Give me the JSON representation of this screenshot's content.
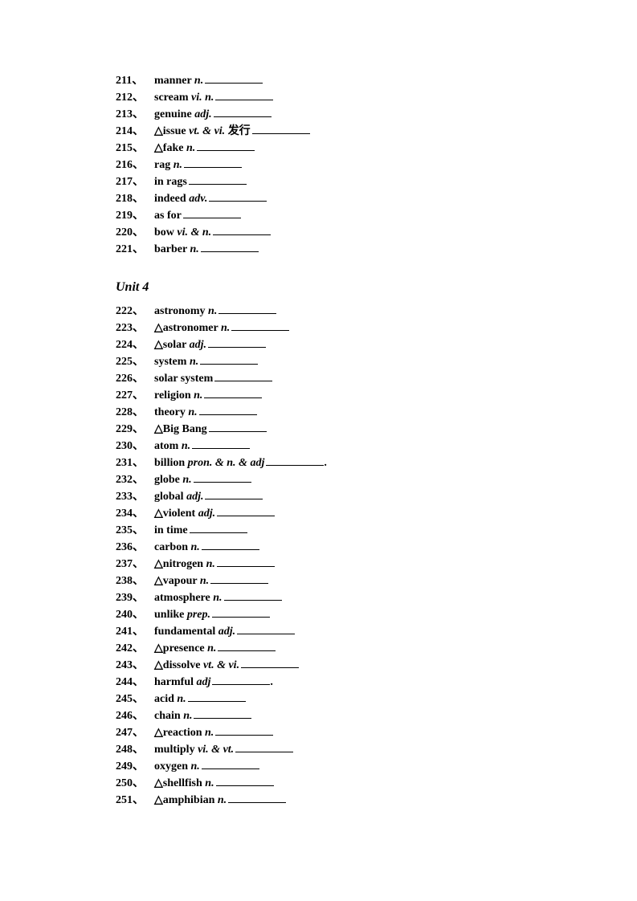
{
  "section1": [
    {
      "num": "211",
      "tri": "",
      "word": "manner",
      "pos": "n.",
      "extra": "",
      "trail": ""
    },
    {
      "num": "212",
      "tri": "",
      "word": "scream",
      "pos": "vi.   n.",
      "extra": "",
      "trail": ""
    },
    {
      "num": "213",
      "tri": "",
      "word": "genuine",
      "pos": "adj.",
      "extra": "",
      "trail": ""
    },
    {
      "num": "214",
      "tri": "△",
      "word": "issue",
      "pos": "vt. & vi.",
      "extra": " 发行",
      "trail": ""
    },
    {
      "num": "215",
      "tri": "△",
      "word": "fake",
      "pos": "n.",
      "extra": "",
      "trail": ""
    },
    {
      "num": "216",
      "tri": "",
      "word": "rag",
      "pos": "n.",
      "extra": "",
      "trail": ""
    },
    {
      "num": "217",
      "tri": "",
      "word": "in rags",
      "pos": "",
      "extra": "",
      "trail": ""
    },
    {
      "num": "218",
      "tri": "",
      "word": "indeed",
      "pos": "adv.",
      "extra": "",
      "trail": ""
    },
    {
      "num": "219",
      "tri": "",
      "word": "as for",
      "pos": "",
      "extra": "",
      "trail": ""
    },
    {
      "num": "220",
      "tri": "",
      "word": "bow",
      "pos": "vi. & n.",
      "extra": "",
      "trail": ""
    },
    {
      "num": "221",
      "tri": "",
      "word": "barber",
      "pos": "n.",
      "extra": "",
      "trail": ""
    }
  ],
  "heading": "Unit 4",
  "section2": [
    {
      "num": "222",
      "tri": "",
      "word": "astronomy",
      "pos": "n.",
      "extra": "",
      "trail": ""
    },
    {
      "num": "223",
      "tri": "△",
      "word": "astronomer",
      "pos": "n.",
      "extra": "",
      "trail": ""
    },
    {
      "num": "224",
      "tri": "△",
      "word": "solar",
      "pos": "adj.",
      "extra": "",
      "trail": ""
    },
    {
      "num": "225",
      "tri": "",
      "word": "system",
      "pos": "n.",
      "extra": "",
      "trail": ""
    },
    {
      "num": "226",
      "tri": "",
      "word": "solar system",
      "pos": "",
      "extra": "",
      "trail": ""
    },
    {
      "num": "227",
      "tri": "",
      "word": "religion",
      "pos": "n.",
      "extra": "",
      "trail": ""
    },
    {
      "num": "228",
      "tri": "",
      "word": "theory",
      "pos": "n.",
      "extra": "",
      "trail": ""
    },
    {
      "num": "229",
      "tri": "△",
      "word": "Big Bang",
      "pos": "",
      "extra": "",
      "trail": ""
    },
    {
      "num": "230",
      "tri": "",
      "word": "atom",
      "pos": "n.",
      "extra": "",
      "trail": ""
    },
    {
      "num": "231",
      "tri": "",
      "word": "billion",
      "pos": "pron. & n. & adj",
      "extra": "",
      "trail": "."
    },
    {
      "num": "232",
      "tri": "",
      "word": "globe",
      "pos": "n.",
      "extra": "",
      "trail": ""
    },
    {
      "num": "233",
      "tri": "",
      "word": "global",
      "pos": "adj.",
      "extra": "",
      "trail": ""
    },
    {
      "num": "234",
      "tri": "△",
      "word": "violent",
      "pos": "adj.",
      "extra": "",
      "trail": ""
    },
    {
      "num": "235",
      "tri": "",
      "word": "in time",
      "pos": "",
      "extra": "",
      "trail": ""
    },
    {
      "num": "236",
      "tri": "",
      "word": "carbon",
      "pos": "n.",
      "extra": "",
      "trail": ""
    },
    {
      "num": "237",
      "tri": "△",
      "word": "nitrogen",
      "pos": "n.",
      "extra": "",
      "trail": ""
    },
    {
      "num": "238",
      "tri": "△",
      "word": "vapour",
      "pos": "n.",
      "extra": "",
      "trail": ""
    },
    {
      "num": "239",
      "tri": "",
      "word": "atmosphere",
      "pos": "n.",
      "extra": "",
      "trail": ""
    },
    {
      "num": "240",
      "tri": "",
      "word": "unlike  ",
      "pos": "prep.",
      "extra": "",
      "trail": ""
    },
    {
      "num": "241",
      "tri": "",
      "word": "fundamental",
      "pos": "adj.",
      "extra": "",
      "trail": ""
    },
    {
      "num": "242",
      "tri": "△",
      "word": "presence",
      "pos": "n.",
      "extra": "",
      "trail": ""
    },
    {
      "num": "243",
      "tri": "△",
      "word": "dissolve",
      "pos": "vt. & vi.",
      "extra": "",
      "trail": ""
    },
    {
      "num": "244",
      "tri": "",
      "word": "harmful",
      "pos": "adj",
      "extra": "",
      "trail": "."
    },
    {
      "num": "245",
      "tri": "",
      "word": "acid",
      "pos": "n.",
      "extra": "",
      "trail": ""
    },
    {
      "num": "246",
      "tri": "",
      "word": "chain",
      "pos": "n.",
      "extra": "",
      "trail": ""
    },
    {
      "num": "247",
      "tri": "△",
      "word": "reaction",
      "pos": "n.",
      "extra": "",
      "trail": ""
    },
    {
      "num": "248",
      "tri": "",
      "word": "multiply",
      "pos": "vi. & vt.",
      "extra": "",
      "trail": ""
    },
    {
      "num": "249",
      "tri": "",
      "word": "oxygen",
      "pos": "n.",
      "extra": "",
      "trail": ""
    },
    {
      "num": "250",
      "tri": "△",
      "word": "shellfish",
      "pos": "n.",
      "extra": "",
      "trail": ""
    },
    {
      "num": "251",
      "tri": "△",
      "word": "amphibian",
      "pos": "n.",
      "extra": "",
      "trail": ""
    }
  ]
}
